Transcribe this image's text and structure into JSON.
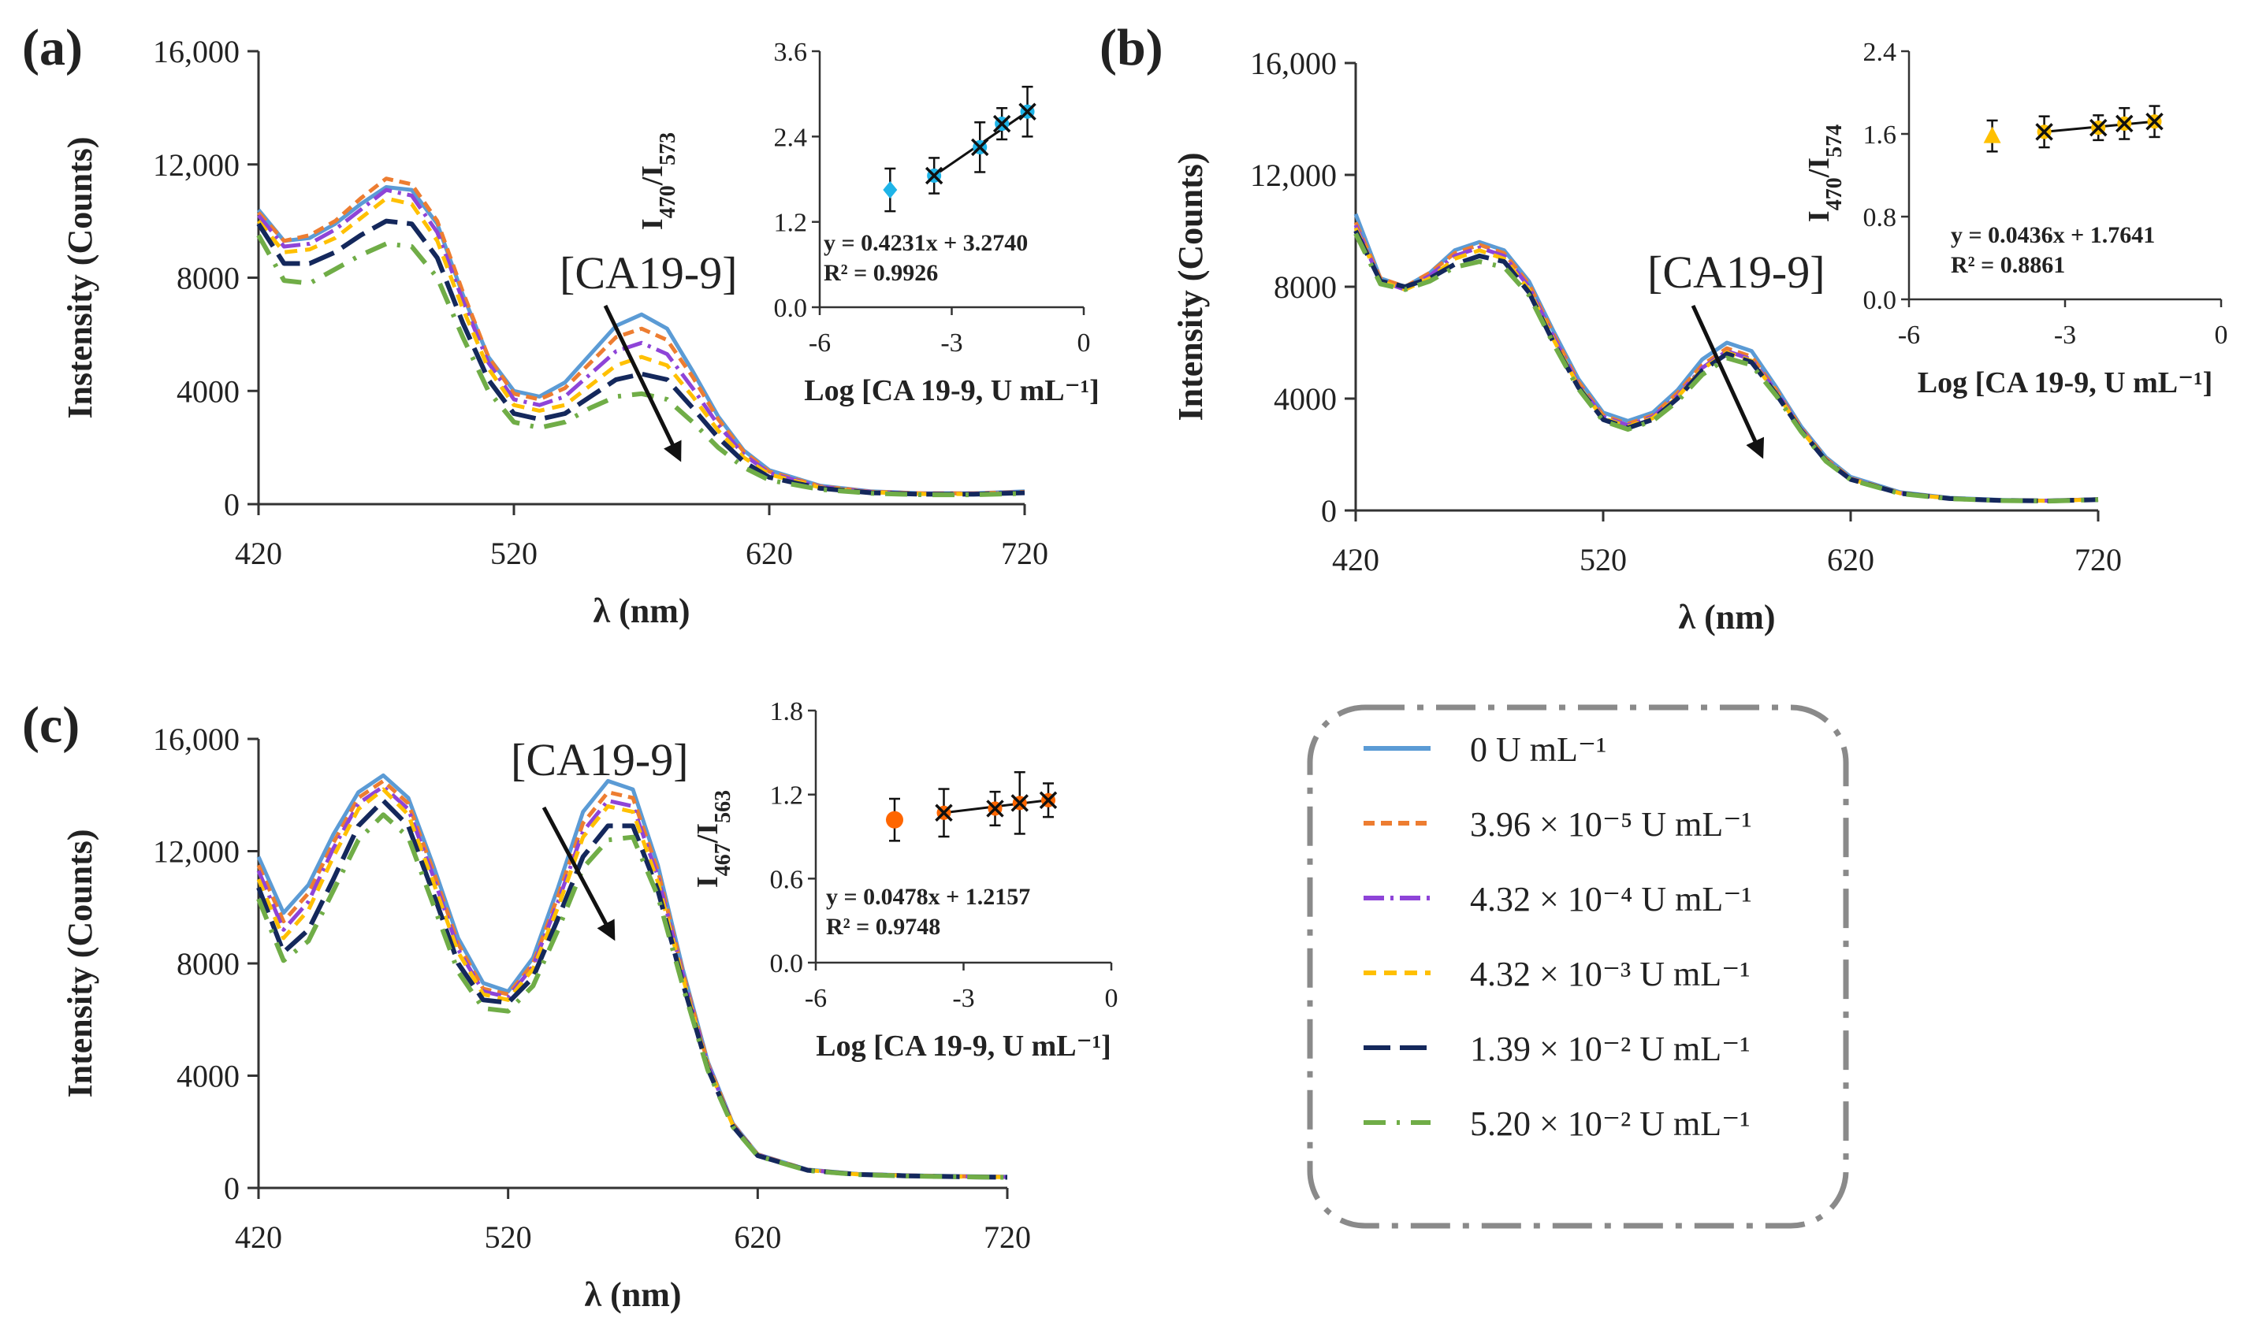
{
  "colors": {
    "s0": "#5B9BD5",
    "s1": "#ED7D31",
    "s2": "#8E44D8",
    "s3": "#FFC000",
    "s4": "#14285C",
    "s5": "#70AD47",
    "ins_a": "#1EB4E8",
    "ins_b": "#FFC000",
    "ins_c": "#FF6600",
    "axis": "#333333"
  },
  "legend": {
    "items": [
      {
        "label": "0 U mL⁻¹"
      },
      {
        "label": "3.96 × 10⁻⁵ U mL⁻¹"
      },
      {
        "label": "4.32 × 10⁻⁴ U mL⁻¹"
      },
      {
        "label": "4.32 × 10⁻³ U mL⁻¹"
      },
      {
        "label": "1.39 × 10⁻² U mL⁻¹"
      },
      {
        "label": "5.20 × 10⁻² U mL⁻¹"
      }
    ]
  },
  "chart_data": [
    {
      "type": "line",
      "id": "a",
      "panel_label": "(a)",
      "xlabel": "λ (nm)",
      "ylabel": "Instensity (Counts)",
      "xlim": [
        420,
        720
      ],
      "ylim": [
        0,
        16000
      ],
      "xticks": [
        420,
        520,
        620,
        720
      ],
      "yticks": [
        0,
        4000,
        8000,
        12000,
        16000
      ],
      "ytick_labels": [
        "0",
        "4000",
        "8000",
        "12,000",
        "16,000"
      ],
      "annotation": "[CA19-9]",
      "x": [
        420,
        430,
        440,
        450,
        460,
        470,
        480,
        490,
        500,
        510,
        520,
        530,
        540,
        550,
        560,
        570,
        580,
        590,
        600,
        610,
        620,
        640,
        660,
        680,
        700,
        720
      ],
      "series": [
        {
          "name": "0 U mL⁻¹",
          "values": [
            10400,
            9300,
            9400,
            9900,
            10600,
            11200,
            11100,
            9900,
            7400,
            5200,
            4000,
            3800,
            4300,
            5300,
            6300,
            6700,
            6200,
            4700,
            3100,
            1900,
            1200,
            650,
            450,
            380,
            380,
            450
          ]
        },
        {
          "name": "3.96 × 10⁻⁵ U mL⁻¹",
          "values": [
            10300,
            9300,
            9500,
            10000,
            10800,
            11500,
            11300,
            10000,
            7500,
            5200,
            3900,
            3700,
            4100,
            5000,
            5900,
            6200,
            5800,
            4500,
            3000,
            1850,
            1150,
            630,
            440,
            380,
            380,
            430
          ]
        },
        {
          "name": "4.32 × 10⁻⁴ U mL⁻¹",
          "values": [
            10200,
            9100,
            9200,
            9700,
            10400,
            11100,
            10900,
            9600,
            7200,
            5000,
            3700,
            3500,
            3800,
            4600,
            5400,
            5700,
            5300,
            4100,
            2800,
            1750,
            1100,
            610,
            430,
            370,
            370,
            420
          ]
        },
        {
          "name": "4.32 × 10⁻³ U mL⁻¹",
          "values": [
            10000,
            8900,
            9000,
            9400,
            10100,
            10800,
            10600,
            9300,
            6900,
            4800,
            3500,
            3300,
            3500,
            4200,
            4900,
            5200,
            4900,
            3800,
            2600,
            1650,
            1050,
            590,
            420,
            360,
            360,
            410
          ]
        },
        {
          "name": "1.39 × 10⁻² U mL⁻¹",
          "values": [
            9900,
            8500,
            8500,
            8900,
            9500,
            10000,
            9900,
            8700,
            6400,
            4400,
            3200,
            3000,
            3200,
            3800,
            4400,
            4600,
            4400,
            3400,
            2350,
            1500,
            950,
            560,
            400,
            350,
            350,
            400
          ]
        },
        {
          "name": "5.20 × 10⁻² U mL⁻¹",
          "values": [
            9500,
            7900,
            7800,
            8300,
            8800,
            9200,
            9100,
            8000,
            5900,
            4000,
            2900,
            2700,
            2900,
            3400,
            3800,
            3900,
            3700,
            2900,
            2000,
            1300,
            850,
            520,
            380,
            330,
            330,
            380
          ]
        }
      ],
      "inset": {
        "xlabel": "Log [CA 19-9, U mL⁻¹]",
        "ylabel": "I470/I573",
        "ylabel_main": "I",
        "ylabel_sub1": "470",
        "ylabel_mid": "/I",
        "ylabel_sub2": "573",
        "xlim": [
          -6,
          0
        ],
        "ylim": [
          0,
          3.6
        ],
        "xticks": [
          -6,
          -3,
          0
        ],
        "yticks": [
          0,
          1.2,
          2.4,
          3.6
        ],
        "ytick_labels": [
          "0.0",
          "1.2",
          "2.4",
          "3.6"
        ],
        "blank_point": {
          "x": -4.4,
          "y": 1.65,
          "err": 0.3
        },
        "points": [
          {
            "x": -3.4,
            "y": 1.85,
            "err": 0.25
          },
          {
            "x": -2.36,
            "y": 2.25,
            "err": 0.35
          },
          {
            "x": -1.86,
            "y": 2.58,
            "err": 0.22
          },
          {
            "x": -1.28,
            "y": 2.75,
            "err": 0.35
          }
        ],
        "equation": "y = 0.4231x + 3.2740",
        "r2": "R² = 0.9926"
      }
    },
    {
      "type": "line",
      "id": "b",
      "panel_label": "(b)",
      "xlabel": "λ (nm)",
      "ylabel": "Intensity (Counts)",
      "xlim": [
        420,
        720
      ],
      "ylim": [
        0,
        16000
      ],
      "xticks": [
        420,
        520,
        620,
        720
      ],
      "yticks": [
        0,
        4000,
        8000,
        12000,
        16000
      ],
      "ytick_labels": [
        "0",
        "4000",
        "8000",
        "12,000",
        "16,000"
      ],
      "annotation": "[CA19-9]",
      "x": [
        420,
        430,
        440,
        450,
        460,
        470,
        480,
        490,
        500,
        510,
        520,
        530,
        540,
        550,
        560,
        570,
        580,
        590,
        600,
        610,
        620,
        640,
        660,
        680,
        700,
        720
      ],
      "series": [
        {
          "name": "0 U mL⁻¹",
          "values": [
            10600,
            8300,
            8000,
            8500,
            9300,
            9600,
            9300,
            8200,
            6400,
            4700,
            3500,
            3200,
            3500,
            4300,
            5400,
            6000,
            5700,
            4400,
            3000,
            1900,
            1200,
            650,
            450,
            380,
            350,
            400
          ]
        },
        {
          "name": "3.96 × 10⁻⁵ U mL⁻¹",
          "values": [
            10300,
            8300,
            8000,
            8500,
            9200,
            9500,
            9200,
            8100,
            6300,
            4600,
            3400,
            3100,
            3400,
            4200,
            5200,
            5800,
            5500,
            4300,
            2950,
            1850,
            1150,
            630,
            440,
            370,
            350,
            400
          ]
        },
        {
          "name": "4.32 × 10⁻⁴ U mL⁻¹",
          "values": [
            10200,
            8200,
            7900,
            8400,
            9100,
            9400,
            9100,
            8000,
            6200,
            4500,
            3350,
            3050,
            3350,
            4100,
            5100,
            5700,
            5400,
            4250,
            2900,
            1800,
            1130,
            620,
            430,
            370,
            350,
            400
          ]
        },
        {
          "name": "4.32 × 10⁻³ U mL⁻¹",
          "values": [
            10100,
            8200,
            7900,
            8300,
            9000,
            9300,
            9000,
            7900,
            6100,
            4450,
            3300,
            3000,
            3300,
            4050,
            5050,
            5650,
            5350,
            4200,
            2880,
            1790,
            1120,
            615,
            430,
            365,
            345,
            395
          ]
        },
        {
          "name": "1.39 × 10⁻² U mL⁻¹",
          "values": [
            10000,
            8200,
            8000,
            8300,
            8800,
            9100,
            8900,
            7800,
            6000,
            4400,
            3250,
            2950,
            3250,
            4000,
            5000,
            5600,
            5300,
            4150,
            2850,
            1780,
            1110,
            610,
            425,
            360,
            340,
            390
          ]
        },
        {
          "name": "5.20 × 10⁻² U mL⁻¹",
          "values": [
            9900,
            8100,
            7900,
            8200,
            8700,
            8900,
            8700,
            7700,
            5950,
            4350,
            3200,
            2900,
            3200,
            3900,
            4850,
            5450,
            5200,
            4100,
            2820,
            1760,
            1100,
            600,
            420,
            355,
            335,
            385
          ]
        }
      ],
      "inset": {
        "xlabel": "Log [CA 19-9, U mL⁻¹]",
        "ylabel": "I470/I574",
        "ylabel_main": "I",
        "ylabel_sub1": "470",
        "ylabel_mid": "/I",
        "ylabel_sub2": "574",
        "xlim": [
          -6,
          0
        ],
        "ylim": [
          0,
          2.4
        ],
        "xticks": [
          -6,
          -3,
          0
        ],
        "yticks": [
          0,
          0.8,
          1.6,
          2.4
        ],
        "ytick_labels": [
          "0.0",
          "0.8",
          "1.6",
          "2.4"
        ],
        "blank_point": {
          "x": -4.4,
          "y": 1.58,
          "err": 0.15
        },
        "points": [
          {
            "x": -3.4,
            "y": 1.62,
            "err": 0.15
          },
          {
            "x": -2.36,
            "y": 1.66,
            "err": 0.12
          },
          {
            "x": -1.86,
            "y": 1.7,
            "err": 0.15
          },
          {
            "x": -1.28,
            "y": 1.72,
            "err": 0.15
          }
        ],
        "equation": "y = 0.0436x + 1.7641",
        "r2": "R² = 0.8861"
      }
    },
    {
      "type": "line",
      "id": "c",
      "panel_label": "(c)",
      "xlabel": "λ (nm)",
      "ylabel": "Intensity (Counts)",
      "xlim": [
        420,
        720
      ],
      "ylim": [
        0,
        16000
      ],
      "xticks": [
        420,
        520,
        620,
        720
      ],
      "yticks": [
        0,
        4000,
        8000,
        12000,
        16000
      ],
      "ytick_labels": [
        "0",
        "4000",
        "8000",
        "12,000",
        "16,000"
      ],
      "annotation": "[CA19-9]",
      "x": [
        420,
        430,
        440,
        450,
        460,
        470,
        480,
        490,
        500,
        510,
        520,
        530,
        540,
        550,
        560,
        570,
        580,
        590,
        600,
        610,
        620,
        640,
        660,
        680,
        700,
        720
      ],
      "series": [
        {
          "name": "0 U mL⁻¹",
          "values": [
            11800,
            9800,
            10800,
            12600,
            14100,
            14700,
            13900,
            11500,
            8900,
            7300,
            7000,
            8200,
            10700,
            13400,
            14500,
            14200,
            11500,
            7800,
            4500,
            2300,
            1200,
            650,
            500,
            450,
            420,
            400
          ]
        },
        {
          "name": "3.96 × 10⁻⁵ U mL⁻¹",
          "values": [
            11500,
            9500,
            10500,
            12300,
            13900,
            14500,
            13700,
            11300,
            8700,
            7100,
            6900,
            8000,
            10400,
            13000,
            14100,
            13900,
            11300,
            7700,
            4450,
            2280,
            1190,
            645,
            495,
            445,
            415,
            395
          ]
        },
        {
          "name": "4.32 × 10⁻⁴ U mL⁻¹",
          "values": [
            11300,
            9200,
            10200,
            12100,
            13700,
            14300,
            13500,
            11100,
            8500,
            7000,
            6800,
            7900,
            10200,
            12700,
            13800,
            13600,
            11100,
            7600,
            4400,
            2260,
            1180,
            640,
            490,
            440,
            410,
            390
          ]
        },
        {
          "name": "4.32 × 10⁻³ U mL⁻¹",
          "values": [
            11000,
            8900,
            9900,
            11800,
            13500,
            14200,
            13300,
            10900,
            8400,
            6900,
            6700,
            7800,
            10000,
            12500,
            13600,
            13400,
            10900,
            7500,
            4350,
            2240,
            1170,
            635,
            485,
            435,
            405,
            385
          ]
        },
        {
          "name": "1.39 × 10⁻² U mL⁻¹",
          "values": [
            10700,
            8400,
            9200,
            11000,
            12900,
            13800,
            12900,
            10500,
            8000,
            6700,
            6600,
            7500,
            9600,
            11800,
            12900,
            12900,
            10600,
            7300,
            4250,
            2200,
            1150,
            630,
            480,
            430,
            400,
            380
          ]
        },
        {
          "name": "5.20 × 10⁻² U mL⁻¹",
          "values": [
            10300,
            8100,
            8800,
            10600,
            12400,
            13300,
            12500,
            10100,
            7700,
            6400,
            6300,
            7200,
            9200,
            11400,
            12400,
            12500,
            10400,
            7200,
            4200,
            2180,
            1140,
            620,
            475,
            425,
            395,
            375
          ]
        }
      ],
      "inset": {
        "xlabel": "Log [CA 19-9, U mL⁻¹]",
        "ylabel": "I467/I563",
        "ylabel_main": "I",
        "ylabel_sub1": "467",
        "ylabel_mid": "/I",
        "ylabel_sub2": "563",
        "xlim": [
          -6,
          0
        ],
        "ylim": [
          0,
          1.8
        ],
        "xticks": [
          -6,
          -3,
          0
        ],
        "yticks": [
          0,
          0.6,
          1.2,
          1.8
        ],
        "ytick_labels": [
          "0.0",
          "0.6",
          "1.2",
          "1.8"
        ],
        "blank_point": {
          "x": -4.4,
          "y": 1.02,
          "err": 0.15
        },
        "points": [
          {
            "x": -3.4,
            "y": 1.07,
            "err": 0.17
          },
          {
            "x": -2.36,
            "y": 1.1,
            "err": 0.12
          },
          {
            "x": -1.86,
            "y": 1.14,
            "err": 0.22
          },
          {
            "x": -1.28,
            "y": 1.16,
            "err": 0.12
          }
        ],
        "equation": "y = 0.0478x + 1.2157",
        "r2": "R² = 0.9748"
      }
    }
  ]
}
